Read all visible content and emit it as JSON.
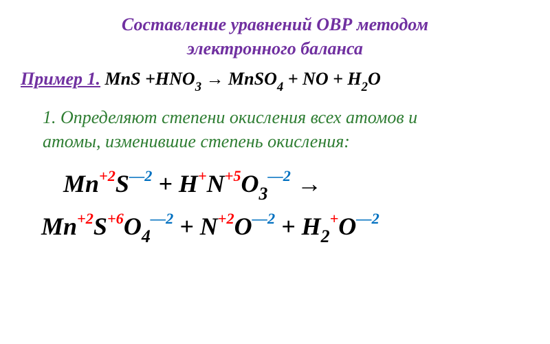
{
  "colors": {
    "title": "#7030a0",
    "example_label": "#7030a0",
    "reaction_text": "#000000",
    "desc": "#2e7d32",
    "atom": "#000000",
    "ox_pos": "#ff0000",
    "ox_neg": "#0070c0",
    "arrow": "#000000"
  },
  "fontsizes": {
    "title": 26,
    "example": 26,
    "desc": 26,
    "eq": 36
  },
  "title_line1": "Составление уравнений ОВР методом",
  "title_line2": "электронного баланса",
  "example_label": "Пример 1.",
  "example_gap": "   ",
  "reaction": {
    "p1": "MnS +HNO",
    "s1": "3",
    "p2": " → MnSO",
    "s2": "4",
    "p3": " + NO + H",
    "s3": "2",
    "p4": "O"
  },
  "desc_line1": "    1. Определяют степени окисления всех атомов и",
  "desc_line2": "атомы, изменившие степень окисления:",
  "eq": {
    "Mn": "Mn",
    "S": "S",
    "H": "H",
    "N": "N",
    "O": "O",
    "plus": "   +   ",
    "plus2": "  + ",
    "arrow": "   →",
    "ox_p2": "+2",
    "ox_m2": "—2",
    "ox_p1": "+",
    "ox_p5": "+5",
    "ox_p6": "+6",
    "sub2": "2",
    "sub3": "3",
    "sub4": "4"
  }
}
